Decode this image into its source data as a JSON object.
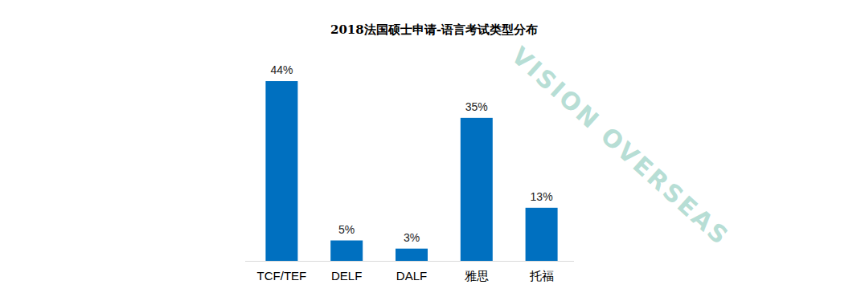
{
  "chart_data": {
    "type": "bar",
    "title": "2018法国硕士申请-语言考试类型分布",
    "categories": [
      "TCF/TEF",
      "DELF",
      "DALF",
      "雅思",
      "托福"
    ],
    "values": [
      44,
      5,
      3,
      35,
      13
    ],
    "value_labels": [
      "44%",
      "5%",
      "3%",
      "35%",
      "13%"
    ],
    "color": "#0070c0",
    "ylim": [
      0,
      50
    ],
    "data_labels": true,
    "tick_labels": "x",
    "grid": false,
    "annotations": [
      "VISION OVERSEAS"
    ]
  }
}
